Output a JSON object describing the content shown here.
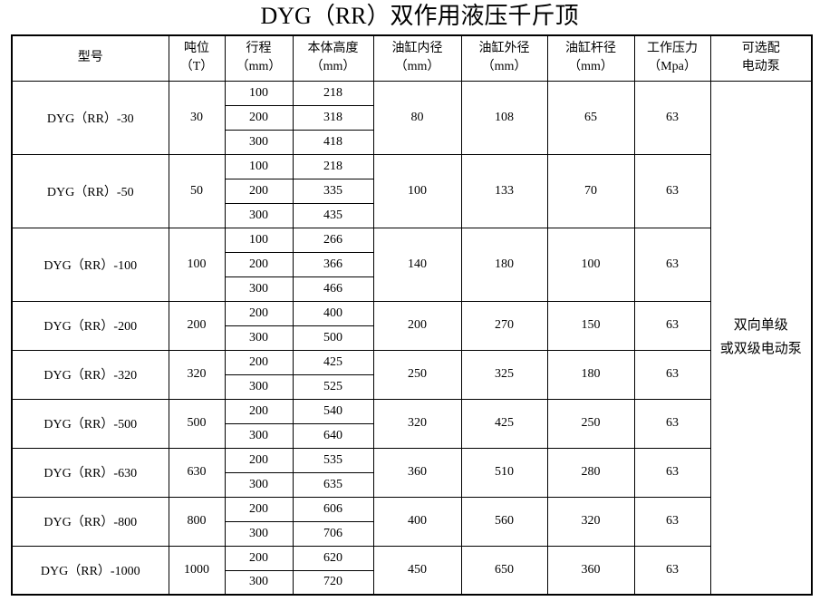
{
  "page": {
    "title": "DYG（RR）双作用液压千斤顶"
  },
  "table": {
    "headers": [
      {
        "label": "型号",
        "unit": ""
      },
      {
        "label": "吨位",
        "unit": "（T）"
      },
      {
        "label": "行程",
        "unit": "（mm）"
      },
      {
        "label": "本体高度",
        "unit": "（mm）"
      },
      {
        "label": "油缸内径",
        "unit": "（mm）"
      },
      {
        "label": "油缸外径",
        "unit": "（mm）"
      },
      {
        "label": "油缸杆径",
        "unit": "（mm）"
      },
      {
        "label": "工作压力",
        "unit": "（Mpa）"
      },
      {
        "label": "可选配",
        "unit": "电动泵"
      }
    ],
    "pump_option": {
      "line1": "双向单级",
      "line2": "或双级电动泵"
    },
    "rows": [
      {
        "model": "DYG（RR）-30",
        "tonnage": "30",
        "variants": [
          {
            "stroke": "100",
            "height": "218"
          },
          {
            "stroke": "200",
            "height": "318"
          },
          {
            "stroke": "300",
            "height": "418"
          }
        ],
        "bore": "80",
        "outer": "108",
        "rod": "65",
        "pressure": "63"
      },
      {
        "model": "DYG（RR）-50",
        "tonnage": "50",
        "variants": [
          {
            "stroke": "100",
            "height": "218"
          },
          {
            "stroke": "200",
            "height": "335"
          },
          {
            "stroke": "300",
            "height": "435"
          }
        ],
        "bore": "100",
        "outer": "133",
        "rod": "70",
        "pressure": "63"
      },
      {
        "model": "DYG（RR）-100",
        "tonnage": "100",
        "variants": [
          {
            "stroke": "100",
            "height": "266"
          },
          {
            "stroke": "200",
            "height": "366"
          },
          {
            "stroke": "300",
            "height": "466"
          }
        ],
        "bore": "140",
        "outer": "180",
        "rod": "100",
        "pressure": "63"
      },
      {
        "model": "DYG（RR）-200",
        "tonnage": "200",
        "variants": [
          {
            "stroke": "200",
            "height": "400"
          },
          {
            "stroke": "300",
            "height": "500"
          }
        ],
        "bore": "200",
        "outer": "270",
        "rod": "150",
        "pressure": "63"
      },
      {
        "model": "DYG（RR）-320",
        "tonnage": "320",
        "variants": [
          {
            "stroke": "200",
            "height": "425"
          },
          {
            "stroke": "300",
            "height": "525"
          }
        ],
        "bore": "250",
        "outer": "325",
        "rod": "180",
        "pressure": "63"
      },
      {
        "model": "DYG（RR）-500",
        "tonnage": "500",
        "variants": [
          {
            "stroke": "200",
            "height": "540"
          },
          {
            "stroke": "300",
            "height": "640"
          }
        ],
        "bore": "320",
        "outer": "425",
        "rod": "250",
        "pressure": "63"
      },
      {
        "model": "DYG（RR）-630",
        "tonnage": "630",
        "variants": [
          {
            "stroke": "200",
            "height": "535"
          },
          {
            "stroke": "300",
            "height": "635"
          }
        ],
        "bore": "360",
        "outer": "510",
        "rod": "280",
        "pressure": "63"
      },
      {
        "model": "DYG（RR）-800",
        "tonnage": "800",
        "variants": [
          {
            "stroke": "200",
            "height": "606"
          },
          {
            "stroke": "300",
            "height": "706"
          }
        ],
        "bore": "400",
        "outer": "560",
        "rod": "320",
        "pressure": "63"
      },
      {
        "model": "DYG（RR）-1000",
        "tonnage": "1000",
        "variants": [
          {
            "stroke": "200",
            "height": "620"
          },
          {
            "stroke": "300",
            "height": "720"
          }
        ],
        "bore": "450",
        "outer": "650",
        "rod": "360",
        "pressure": "63"
      }
    ]
  },
  "colors": {
    "border": "#000000",
    "text": "#000000",
    "background": "#ffffff"
  }
}
